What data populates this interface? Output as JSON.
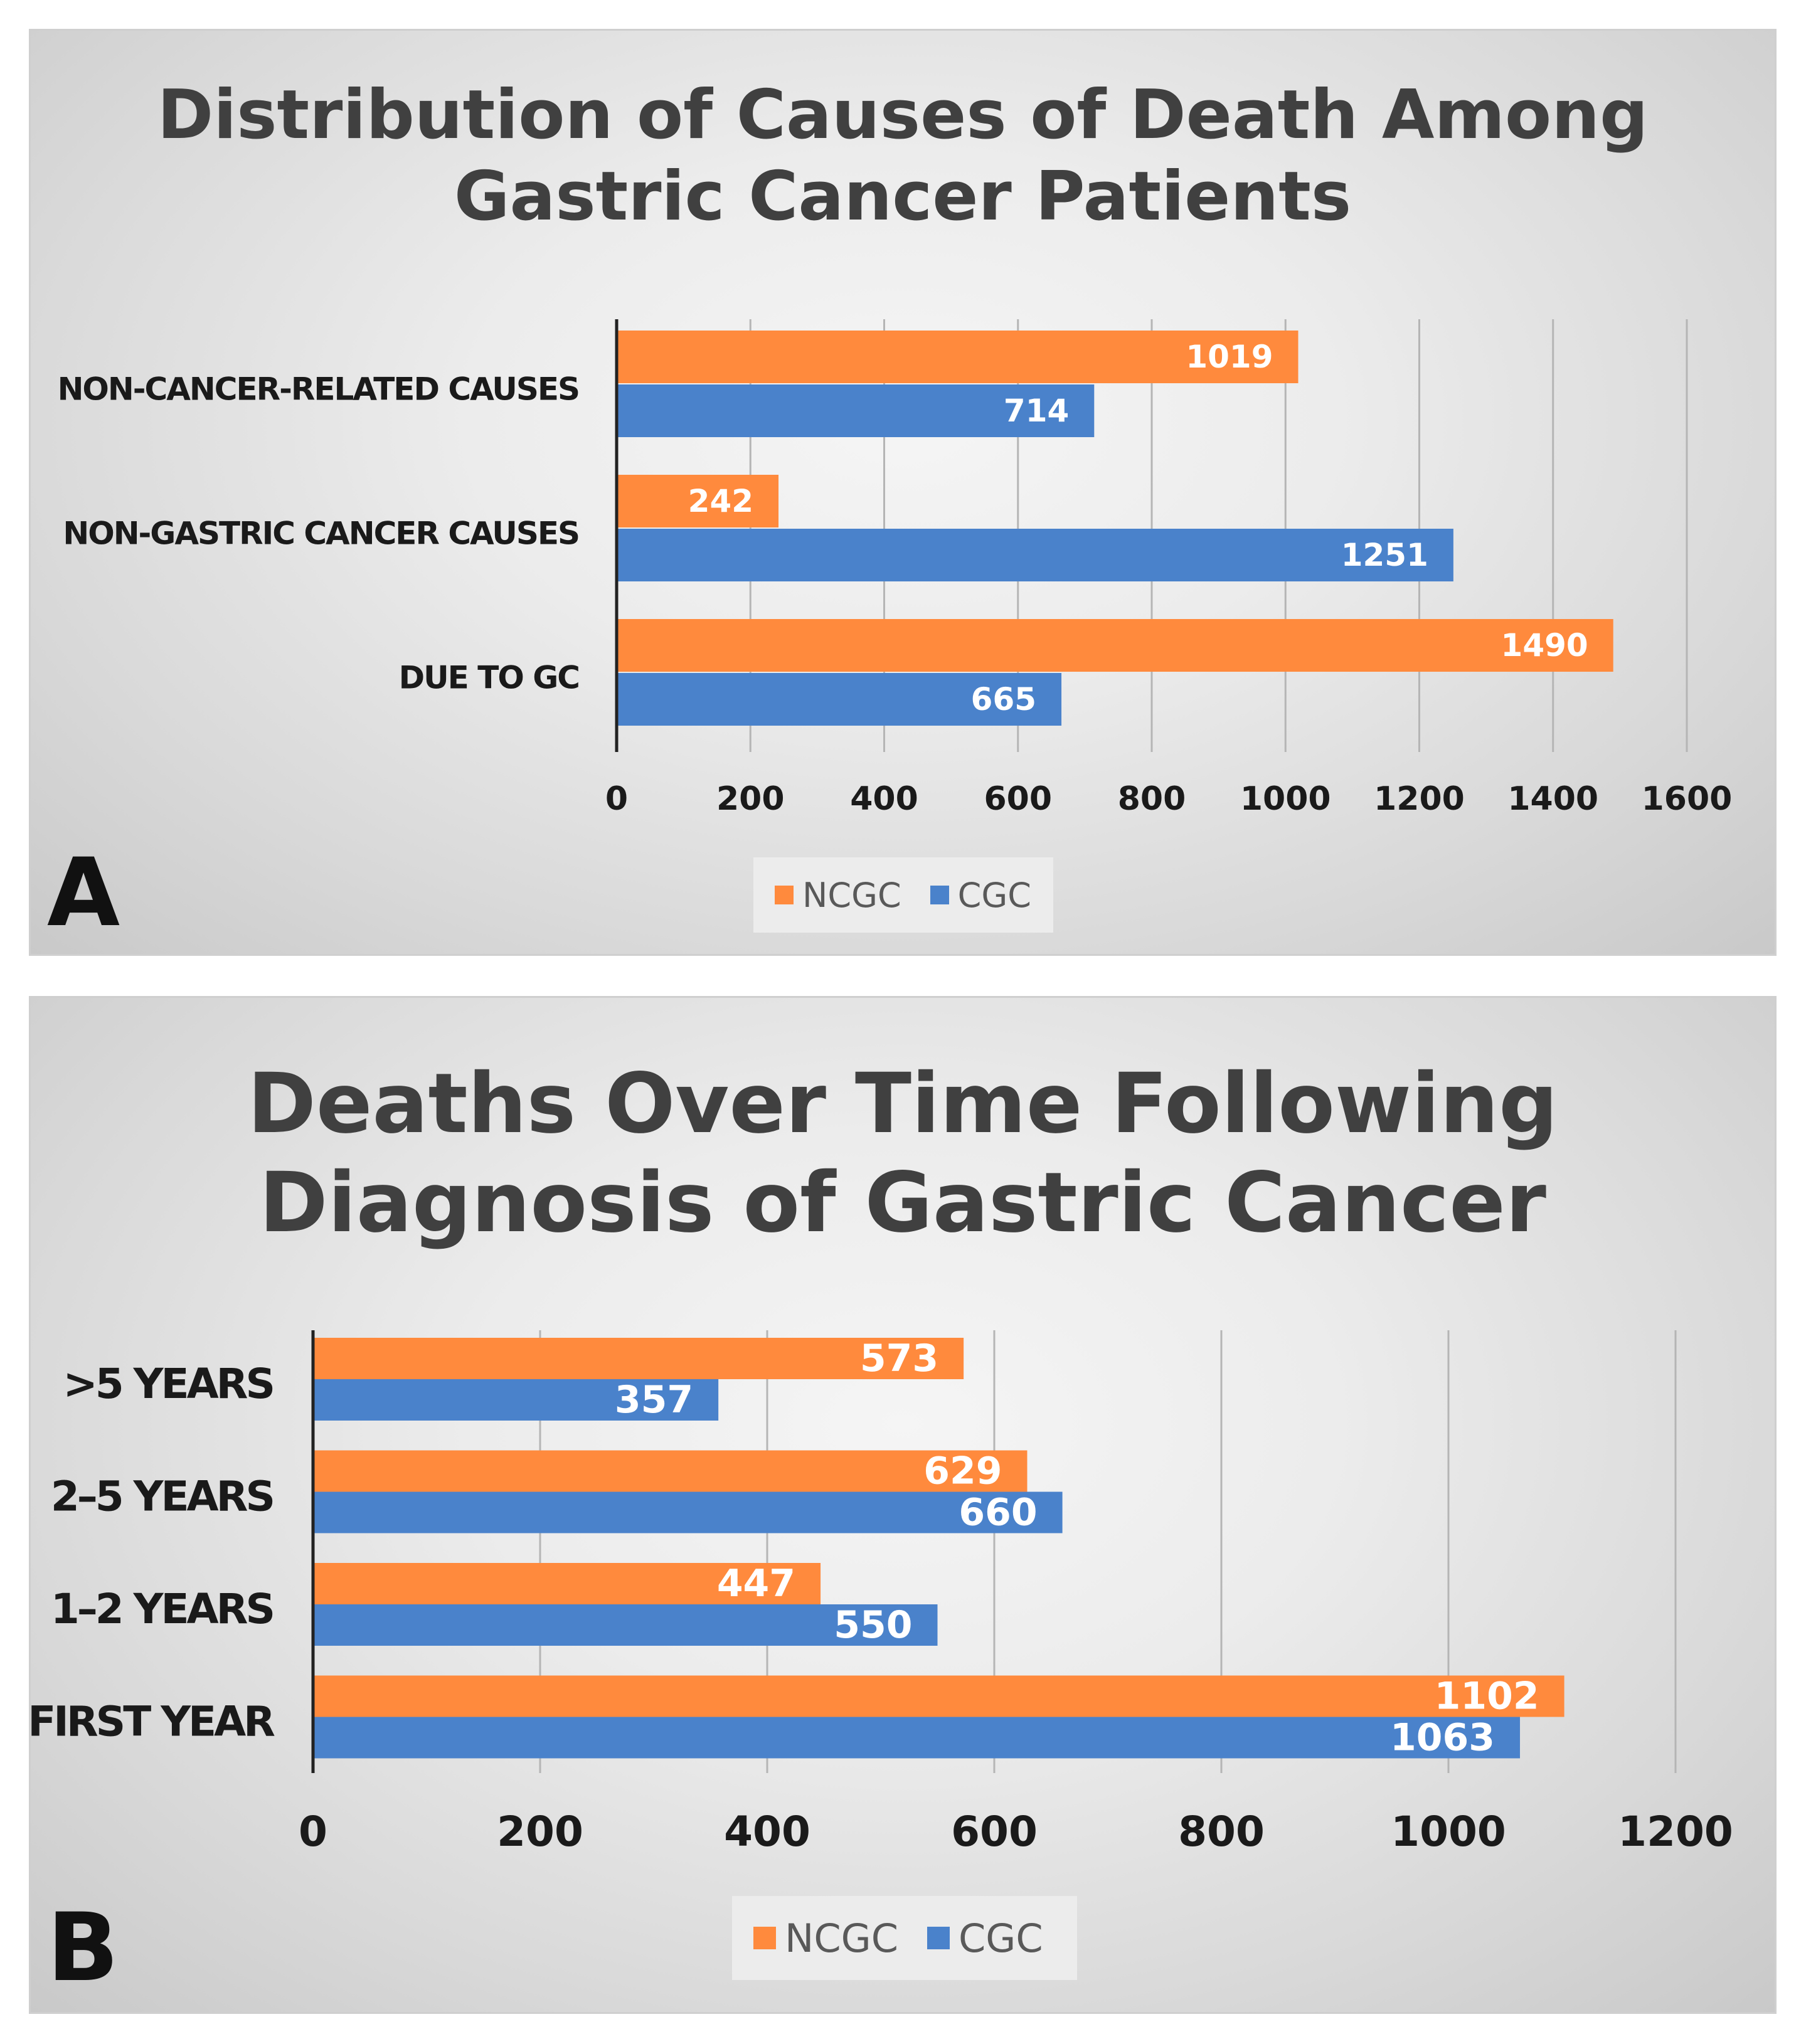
{
  "colors": {
    "ncgc": "#FF8A3D",
    "cgc": "#4A82CB",
    "grid": "#b5b5b5",
    "axis": "#222222",
    "label": "#1a1a1a",
    "bar_text": "#ffffff"
  },
  "icons": {
    "legend_ncgc": "orange-square",
    "legend_cgc": "blue-square"
  },
  "chart_data": [
    {
      "type": "bar",
      "orientation": "horizontal",
      "panel_label": "A",
      "title_line1": "Distribution of Causes of Death Among",
      "title_line2": "Gastric Cancer Patients",
      "categories": [
        "NON-CANCER-RELATED CAUSES",
        "NON-GASTRIC CANCER CAUSES",
        "DUE TO GC"
      ],
      "series": [
        {
          "name": "NCGC",
          "values": [
            1019,
            242,
            1490
          ]
        },
        {
          "name": "CGC",
          "values": [
            714,
            1251,
            665
          ]
        }
      ],
      "xlim": [
        0,
        1600
      ],
      "xticks": [
        0,
        200,
        400,
        600,
        800,
        1000,
        1200,
        1400,
        1600
      ],
      "grid": true,
      "legend_position": "bottom-center",
      "legend_labels": [
        "NCGC",
        "CGC"
      ]
    },
    {
      "type": "bar",
      "orientation": "horizontal",
      "panel_label": "B",
      "title_line1": "Deaths Over Time Following",
      "title_line2": "Diagnosis of Gastric Cancer",
      "categories": [
        ">5 YEARS",
        "2–5 YEARS",
        "1–2 YEARS",
        "FIRST YEAR"
      ],
      "series": [
        {
          "name": "NCGC",
          "values": [
            573,
            629,
            447,
            1102
          ]
        },
        {
          "name": "CGC",
          "values": [
            357,
            660,
            550,
            1063
          ]
        }
      ],
      "xlim": [
        0,
        1200
      ],
      "xticks": [
        0,
        200,
        400,
        600,
        800,
        1000,
        1200
      ],
      "grid": true,
      "legend_position": "bottom-center",
      "legend_labels": [
        "NCGC",
        "CGC"
      ]
    }
  ]
}
